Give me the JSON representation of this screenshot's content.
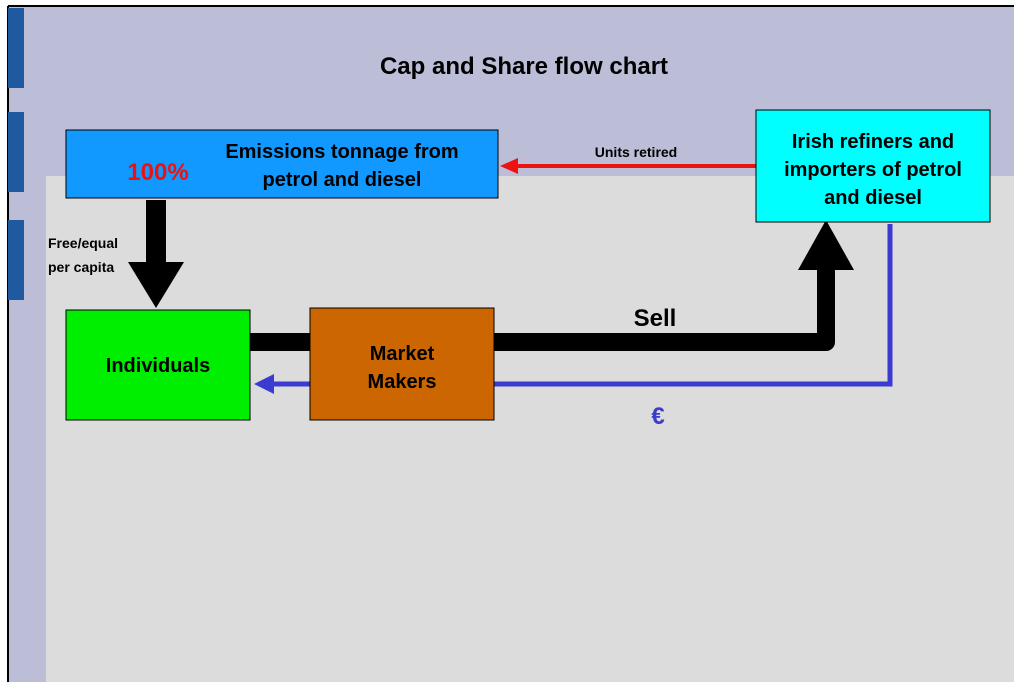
{
  "title": "Cap and Share flow chart",
  "nodes": [
    {
      "label_lines": [
        "Emissions tonnage from",
        "petrol and diesel"
      ],
      "badge": "100%"
    },
    {
      "label_lines": [
        "Irish refiners and",
        "importers of petrol",
        "and diesel"
      ]
    },
    {
      "label_lines": [
        "Individuals"
      ]
    },
    {
      "label_lines": [
        "Market",
        "Makers"
      ]
    }
  ],
  "edges": [
    {
      "label": "Units retired"
    },
    {
      "label_lines": [
        "Free/equal",
        "per capita"
      ]
    },
    {
      "label": "Sell"
    },
    {
      "label": "€"
    }
  ]
}
